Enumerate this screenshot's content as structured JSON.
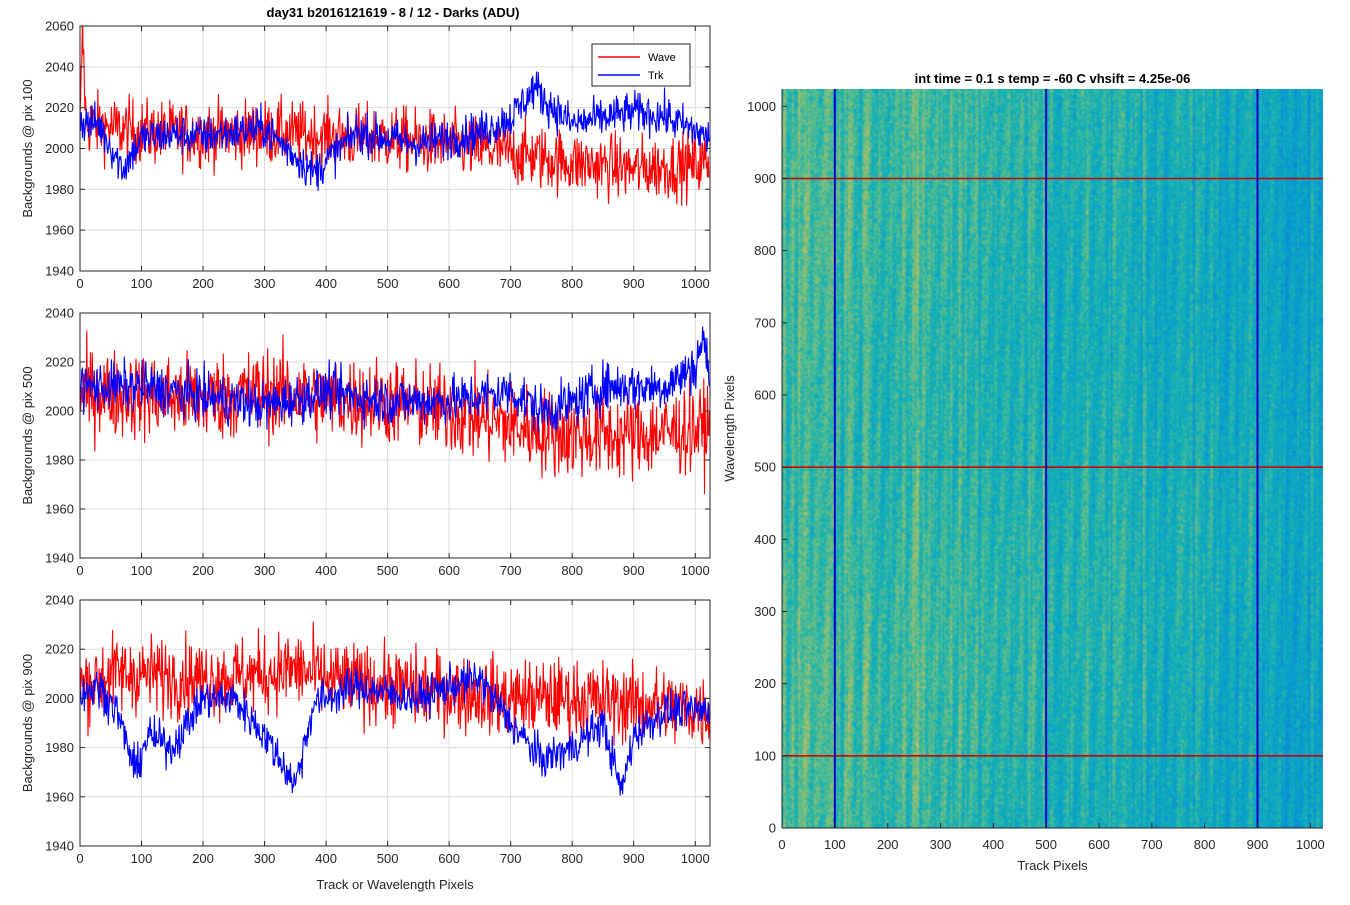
{
  "figure": {
    "title": "day31 b2016121619 - 8 / 12 - Darks (ADU)"
  },
  "chart_data": [
    {
      "type": "line",
      "id": "top",
      "title": "day31 b2016121619 - 8 / 12 - Darks (ADU)",
      "xlabel": "",
      "ylabel": "Backgrounds @ pix 100",
      "xlim": [
        0,
        1024
      ],
      "ylim": [
        1940,
        2060
      ],
      "xticks": [
        0,
        100,
        200,
        300,
        400,
        500,
        600,
        700,
        800,
        900,
        1000
      ],
      "yticks": [
        1940,
        1960,
        1980,
        2000,
        2020,
        2040,
        2060
      ],
      "grid": true,
      "legend": {
        "position": "top-right",
        "entries": [
          "Wave",
          "Trk"
        ]
      },
      "series": [
        {
          "name": "Wave",
          "color": "#ff0000",
          "noise": 8,
          "x": [
            0,
            4,
            10,
            50,
            100,
            200,
            300,
            400,
            500,
            600,
            700,
            800,
            900,
            1000,
            1023
          ],
          "values": [
            2005,
            2058,
            2012,
            2010,
            2008,
            2007,
            2008,
            2006,
            2005,
            2002,
            1998,
            1993,
            1990,
            1992,
            1994
          ]
        },
        {
          "name": "Trk",
          "color": "#0000ff",
          "noise": 5,
          "x": [
            0,
            30,
            70,
            100,
            150,
            200,
            300,
            380,
            450,
            550,
            650,
            700,
            740,
            760,
            800,
            850,
            900,
            950,
            1023
          ],
          "values": [
            2013,
            2012,
            1990,
            2005,
            2007,
            2006,
            2010,
            1988,
            2008,
            2002,
            2008,
            2015,
            2030,
            2022,
            2012,
            2015,
            2018,
            2016,
            2005
          ]
        }
      ]
    },
    {
      "type": "line",
      "id": "middle",
      "title": "",
      "xlabel": "",
      "ylabel": "Backgrounds @ pix 500",
      "xlim": [
        0,
        1024
      ],
      "ylim": [
        1940,
        2040
      ],
      "xticks": [
        0,
        100,
        200,
        300,
        400,
        500,
        600,
        700,
        800,
        900,
        1000
      ],
      "yticks": [
        1940,
        1960,
        1980,
        2000,
        2020,
        2040
      ],
      "grid": true,
      "series": [
        {
          "name": "Wave",
          "color": "#ff0000",
          "noise": 9,
          "x": [
            0,
            100,
            200,
            300,
            400,
            500,
            600,
            700,
            800,
            900,
            1023
          ],
          "values": [
            2008,
            2006,
            2005,
            2008,
            2005,
            2004,
            2000,
            1994,
            1990,
            1990,
            1993
          ]
        },
        {
          "name": "Trk",
          "color": "#0000ff",
          "noise": 5,
          "x": [
            0,
            100,
            200,
            300,
            400,
            500,
            600,
            700,
            750,
            800,
            850,
            900,
            950,
            1000,
            1012,
            1023
          ],
          "values": [
            2010,
            2010,
            2006,
            2002,
            2008,
            2004,
            2004,
            2008,
            2000,
            2003,
            2010,
            2010,
            2010,
            2018,
            2030,
            2015
          ]
        }
      ]
    },
    {
      "type": "line",
      "id": "bottom",
      "title": "",
      "xlabel": "Track or Wavelength Pixels",
      "ylabel": "Backgrounds @ pix 900",
      "xlim": [
        0,
        1024
      ],
      "ylim": [
        1940,
        2040
      ],
      "xticks": [
        0,
        100,
        200,
        300,
        400,
        500,
        600,
        700,
        800,
        900,
        1000
      ],
      "yticks": [
        1940,
        1960,
        1980,
        2000,
        2020,
        2040
      ],
      "grid": true,
      "series": [
        {
          "name": "Wave",
          "color": "#ff0000",
          "noise": 8,
          "x": [
            0,
            50,
            100,
            200,
            300,
            350,
            400,
            500,
            600,
            700,
            800,
            900,
            1023
          ],
          "values": [
            2005,
            2010,
            2010,
            2008,
            2010,
            2012,
            2008,
            2005,
            2003,
            2000,
            2000,
            1998,
            1995
          ]
        },
        {
          "name": "Trk",
          "color": "#0000ff",
          "noise": 4,
          "x": [
            0,
            30,
            60,
            90,
            110,
            150,
            200,
            250,
            300,
            350,
            380,
            450,
            500,
            550,
            600,
            650,
            700,
            750,
            800,
            850,
            880,
            900,
            950,
            1023
          ],
          "values": [
            2002,
            2005,
            1995,
            1970,
            1985,
            1980,
            2000,
            2000,
            1985,
            1965,
            1998,
            2005,
            2002,
            2000,
            2005,
            2008,
            1990,
            1975,
            1980,
            1990,
            1962,
            1985,
            1995,
            1995
          ]
        }
      ]
    },
    {
      "type": "heatmap",
      "id": "image",
      "title": "int time = 0.1 s   temp = -60 C   vhsift = 4.25e-06",
      "xlabel": "Track Pixels",
      "ylabel": "Wavelength Pixels",
      "xlim": [
        0,
        1024
      ],
      "ylim": [
        0,
        1024
      ],
      "xticks": [
        0,
        100,
        200,
        300,
        400,
        500,
        600,
        700,
        800,
        900,
        1000
      ],
      "yticks": [
        0,
        100,
        200,
        300,
        400,
        500,
        600,
        700,
        800,
        900,
        1000
      ],
      "colormap": "parula",
      "value_range": [
        1985,
        2020
      ],
      "vertical_lines": {
        "color": "#0000cc",
        "x": [
          100,
          500,
          900
        ]
      },
      "horizontal_lines": {
        "color": "#cc0000",
        "y": [
          100,
          500,
          900
        ]
      }
    }
  ]
}
